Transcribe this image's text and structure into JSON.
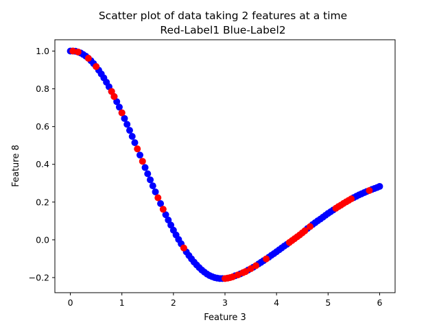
{
  "chart_data": {
    "type": "scatter",
    "title": "Scatter plot of data taking 2 features at a time",
    "subtitle": "Red-Label1 Blue-Label2",
    "xlabel": "Feature 3",
    "ylabel": "Feature 8",
    "xlim": [
      -0.3,
      6.3
    ],
    "ylim": [
      -0.28,
      1.06
    ],
    "xticks": [
      0,
      1,
      2,
      3,
      4,
      5,
      6
    ],
    "xtick_labels": [
      "0",
      "1",
      "2",
      "3",
      "4",
      "5",
      "6"
    ],
    "yticks": [
      -0.2,
      0.0,
      0.2,
      0.4,
      0.6,
      0.8,
      1.0
    ],
    "ytick_labels": [
      "−0.2",
      "0.0",
      "0.2",
      "0.4",
      "0.6",
      "0.8",
      "1.0"
    ],
    "grid": false,
    "legend": "none",
    "colors": {
      "Label1": "#ff0000",
      "Label2": "#0000ff"
    },
    "series": [
      {
        "color": "#0000ff",
        "x": [
          0.0,
          0.05,
          0.1,
          0.15,
          0.2,
          0.25,
          0.3,
          0.35,
          0.4,
          0.45,
          0.5,
          0.55,
          0.6,
          0.65,
          0.7,
          0.75,
          0.8,
          0.85,
          0.9,
          0.95,
          1.0,
          1.05,
          1.1,
          1.15,
          1.2,
          1.25,
          1.35,
          1.45,
          1.5,
          1.55,
          1.6,
          1.65,
          1.75,
          1.85,
          1.9,
          1.95,
          2.0,
          2.05,
          2.1,
          2.15,
          2.25,
          2.3,
          2.35,
          2.4,
          2.45,
          2.5,
          2.55,
          2.6,
          2.65,
          2.7,
          2.75,
          2.8,
          2.85,
          2.9,
          2.95,
          3.2,
          3.3,
          3.45,
          3.55,
          3.65,
          3.7,
          3.75,
          3.85,
          3.9,
          3.95,
          4.0,
          4.05,
          4.1,
          4.15,
          4.2,
          4.6,
          4.7,
          4.75,
          4.8,
          4.85,
          4.9,
          4.95,
          5.0,
          5.05,
          5.1,
          5.5,
          5.55,
          5.6,
          5.65,
          5.7,
          5.75,
          5.85,
          5.9,
          5.95,
          6.0
        ],
        "y": [
          1.0,
          1.0,
          0.999,
          0.995,
          0.99,
          0.982,
          0.973,
          0.962,
          0.949,
          0.934,
          0.918,
          0.899,
          0.879,
          0.858,
          0.835,
          0.811,
          0.786,
          0.759,
          0.732,
          0.703,
          0.673,
          0.643,
          0.612,
          0.58,
          0.548,
          0.515,
          0.449,
          0.383,
          0.35,
          0.318,
          0.286,
          0.254,
          0.192,
          0.133,
          0.105,
          0.078,
          0.051,
          0.026,
          0.002,
          -0.021,
          -0.064,
          -0.083,
          -0.101,
          -0.118,
          -0.133,
          -0.147,
          -0.16,
          -0.171,
          -0.181,
          -0.189,
          -0.195,
          -0.2,
          -0.203,
          -0.205,
          -0.205,
          -0.19,
          -0.18,
          -0.16,
          -0.145,
          -0.128,
          -0.119,
          -0.11,
          -0.092,
          -0.082,
          -0.073,
          -0.063,
          -0.053,
          -0.043,
          -0.033,
          -0.024,
          0.06,
          0.081,
          0.091,
          0.101,
          0.11,
          0.12,
          0.13,
          0.14,
          0.149,
          0.158,
          0.224,
          0.231,
          0.238,
          0.244,
          0.25,
          0.256,
          0.267,
          0.272,
          0.277,
          0.283
        ]
      },
      {
        "color": "#ff0000",
        "x": [
          0.05,
          0.15,
          0.35,
          0.5,
          0.8,
          0.85,
          1.0,
          1.3,
          1.4,
          1.7,
          1.8,
          2.2,
          3.0,
          3.05,
          3.1,
          3.15,
          3.25,
          3.35,
          3.4,
          3.5,
          3.6,
          3.8,
          4.25,
          4.3,
          4.35,
          4.4,
          4.45,
          4.5,
          4.55,
          4.65,
          5.15,
          5.2,
          5.25,
          5.3,
          5.35,
          5.4,
          5.45,
          5.8
        ],
        "y": [
          1.0,
          0.995,
          0.962,
          0.918,
          0.786,
          0.759,
          0.673,
          0.482,
          0.416,
          0.223,
          0.162,
          -0.043,
          -0.205,
          -0.203,
          -0.2,
          -0.196,
          -0.186,
          -0.174,
          -0.168,
          -0.153,
          -0.137,
          -0.101,
          -0.014,
          -0.004,
          0.006,
          0.016,
          0.026,
          0.037,
          0.048,
          0.07,
          0.167,
          0.176,
          0.184,
          0.193,
          0.201,
          0.209,
          0.217,
          0.261
        ]
      }
    ]
  }
}
